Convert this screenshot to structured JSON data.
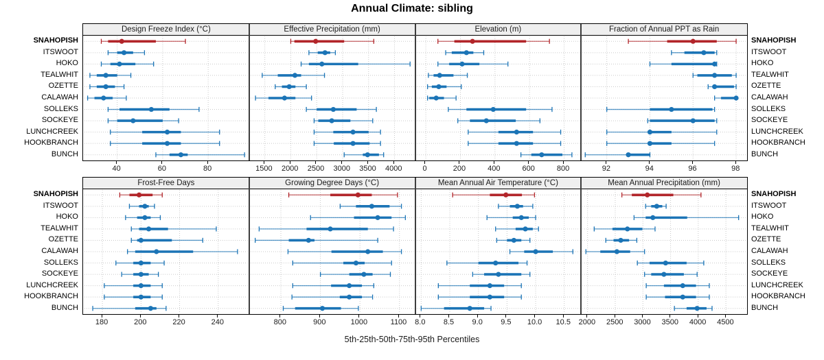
{
  "title": "Annual Climate: sibling",
  "caption": "5th-25th-50th-75th-95th Percentiles",
  "percentile_labels": [
    "5th",
    "25th",
    "50th",
    "75th",
    "95th"
  ],
  "sites": [
    "SNAHOPISH",
    "ITSWOOT",
    "HOKO",
    "TEALWHIT",
    "OZETTE",
    "CALAWAH",
    "SOLLEKS",
    "SOCKEYE",
    "LUNCHCREEK",
    "HOOKBRANCH",
    "BUNCH"
  ],
  "highlight_site": "SNAHOPISH",
  "colors": {
    "highlight": "#b2252a",
    "normal": "#1b74b6",
    "strip_bg": "#efefef",
    "grid": "#c9c9c9",
    "separator": "#3d3d3d",
    "panel_border": "#000000",
    "text": "#1a1a1a"
  },
  "chart_data": [
    {
      "type": "dot-whisker",
      "title": "Design Freeze Index (°C)",
      "xlim": [
        25,
        98
      ],
      "ticks": [
        40,
        60,
        80
      ],
      "tick_labels": [
        "40",
        "60",
        "80"
      ],
      "values": [
        [
          33,
          36,
          42,
          57,
          70
        ],
        [
          36,
          40,
          43,
          47,
          52
        ],
        [
          33,
          37,
          41,
          48,
          56
        ],
        [
          28,
          31,
          35,
          40,
          46
        ],
        [
          28,
          31,
          35,
          39,
          43
        ],
        [
          27,
          30,
          34,
          38,
          44
        ],
        [
          36,
          41,
          55,
          63,
          76
        ],
        [
          36,
          40,
          47,
          60,
          67
        ],
        [
          37,
          51,
          62,
          68,
          85
        ],
        [
          37,
          51,
          62,
          68,
          85
        ],
        [
          57,
          63,
          68,
          71,
          96
        ]
      ]
    },
    {
      "type": "dot-whisker",
      "title": "Effective Precipitation (mm)",
      "xlim": [
        1200,
        4400
      ],
      "ticks": [
        1500,
        2000,
        2500,
        3000,
        3500,
        4000
      ],
      "tick_labels": [
        "1500",
        "2000",
        "2500",
        "3000",
        "3500",
        "4000"
      ],
      "values": [
        [
          2000,
          2070,
          2480,
          3030,
          3600
        ],
        [
          2350,
          2520,
          2660,
          2760,
          2860
        ],
        [
          2200,
          2350,
          2600,
          3300,
          4300
        ],
        [
          1450,
          1750,
          2080,
          2200,
          2650
        ],
        [
          1700,
          1830,
          1970,
          2090,
          2300
        ],
        [
          1320,
          1570,
          1880,
          2090,
          2400
        ],
        [
          2300,
          2500,
          2820,
          3270,
          3650
        ],
        [
          2450,
          2530,
          2790,
          3150,
          3580
        ],
        [
          2450,
          2820,
          3200,
          3500,
          3730
        ],
        [
          2450,
          2830,
          3200,
          3520,
          3730
        ],
        [
          3030,
          3390,
          3480,
          3700,
          3790
        ]
      ]
    },
    {
      "type": "dot-whisker",
      "title": "Elevation (m)",
      "xlim": [
        -60,
        900
      ],
      "ticks": [
        0,
        200,
        400,
        600,
        800
      ],
      "tick_labels": [
        "0",
        "200",
        "400",
        "600",
        "800"
      ],
      "values": [
        [
          70,
          165,
          270,
          580,
          715
        ],
        [
          115,
          150,
          235,
          275,
          335
        ],
        [
          70,
          135,
          210,
          310,
          475
        ],
        [
          15,
          45,
          80,
          160,
          240
        ],
        [
          10,
          35,
          75,
          120,
          205
        ],
        [
          10,
          20,
          60,
          105,
          175
        ],
        [
          130,
          235,
          390,
          580,
          730
        ],
        [
          185,
          255,
          350,
          520,
          660
        ],
        [
          245,
          420,
          525,
          620,
          780
        ],
        [
          245,
          420,
          525,
          620,
          780
        ],
        [
          550,
          610,
          670,
          790,
          845
        ]
      ]
    },
    {
      "type": "dot-whisker",
      "title": "Fraction of Annual PPT as Rain",
      "xlim": [
        90.8,
        98.5
      ],
      "ticks": [
        92,
        94,
        96,
        98
      ],
      "tick_labels": [
        "92",
        "94",
        "96",
        "98"
      ],
      "values": [
        [
          93,
          94.8,
          96,
          97.1,
          98
        ],
        [
          95,
          95.6,
          96.5,
          97,
          97.1
        ],
        [
          94,
          95,
          97,
          97,
          97.1
        ],
        [
          96,
          96.2,
          97,
          97.8,
          98
        ],
        [
          96.7,
          97,
          97,
          97.9,
          98
        ],
        [
          97,
          97.3,
          98,
          98,
          98
        ],
        [
          92,
          94,
          95,
          96.9,
          97
        ],
        [
          93.9,
          94,
          96,
          97,
          97.1
        ],
        [
          92,
          93.9,
          94,
          95,
          97.1
        ],
        [
          92,
          94,
          94,
          95,
          97
        ],
        [
          91,
          93,
          93,
          94,
          94
        ]
      ]
    },
    {
      "type": "dot-whisker",
      "title": "Frost-Free Days",
      "xlim": [
        170,
        256
      ],
      "ticks": [
        180,
        200,
        220,
        240
      ],
      "tick_labels": [
        "180",
        "200",
        "220",
        "240"
      ],
      "values": [
        [
          189,
          194,
          199,
          206,
          211
        ],
        [
          194,
          199,
          202,
          204,
          207
        ],
        [
          192,
          198,
          202,
          205,
          210
        ],
        [
          195,
          199,
          204,
          214,
          239
        ],
        [
          195,
          198,
          200,
          216,
          232
        ],
        [
          193,
          197,
          208,
          227,
          250
        ],
        [
          187,
          196,
          200,
          205,
          212
        ],
        [
          190,
          196,
          200,
          204,
          209
        ],
        [
          181,
          196,
          200,
          205,
          211
        ],
        [
          181,
          196,
          200,
          205,
          211
        ],
        [
          175,
          197,
          205,
          208,
          213
        ]
      ]
    },
    {
      "type": "dot-whisker",
      "title": "Growing Degree Days (°C)",
      "xlim": [
        720,
        1140
      ],
      "ticks": [
        800,
        900,
        1000,
        1100
      ],
      "tick_labels": [
        "800",
        "900",
        "1000",
        "1100"
      ],
      "values": [
        [
          820,
          925,
          995,
          1030,
          1095
        ],
        [
          950,
          990,
          1030,
          1075,
          1105
        ],
        [
          875,
          985,
          1045,
          1080,
          1115
        ],
        [
          745,
          865,
          925,
          1020,
          1085
        ],
        [
          735,
          820,
          870,
          885,
          1045
        ],
        [
          818,
          928,
          1020,
          1058,
          1105
        ],
        [
          830,
          958,
          990,
          1012,
          1080
        ],
        [
          900,
          973,
          1010,
          1032,
          1077
        ],
        [
          830,
          927,
          973,
          1005,
          1035
        ],
        [
          828,
          949,
          973,
          1005,
          1032
        ],
        [
          806,
          836,
          905,
          952,
          996
        ]
      ]
    },
    {
      "type": "dot-whisker",
      "title": "Mean Annual Air Temperature (°C)",
      "xlim": [
        7.9,
        10.8
      ],
      "ticks": [
        8.0,
        8.5,
        9.0,
        9.5,
        10.0,
        10.5
      ],
      "tick_labels": [
        "8.0",
        "8.5",
        "9.0",
        "9.5",
        "10.0",
        "10.5"
      ],
      "values": [
        [
          8.55,
          9.2,
          9.48,
          9.76,
          9.98
        ],
        [
          9.35,
          9.55,
          9.68,
          9.78,
          9.95
        ],
        [
          9.15,
          9.6,
          9.75,
          9.88,
          10.0
        ],
        [
          9.3,
          9.65,
          9.82,
          9.95,
          10.05
        ],
        [
          9.32,
          9.5,
          9.62,
          9.75,
          9.9
        ],
        [
          9.55,
          9.8,
          10.0,
          10.3,
          10.65
        ],
        [
          8.45,
          9.0,
          9.3,
          9.7,
          9.85
        ],
        [
          8.9,
          9.1,
          9.35,
          9.75,
          9.9
        ],
        [
          8.3,
          8.85,
          9.2,
          9.45,
          9.75
        ],
        [
          8.3,
          8.85,
          9.2,
          9.45,
          9.75
        ],
        [
          8.0,
          8.4,
          8.85,
          9.1,
          9.22
        ]
      ]
    },
    {
      "type": "dot-whisker",
      "title": "Mean Annual Precipitation (mm)",
      "xlim": [
        1880,
        4880
      ],
      "ticks": [
        2000,
        2500,
        3000,
        3500,
        4000,
        4500
      ],
      "tick_labels": [
        "2000",
        "2500",
        "3000",
        "3500",
        "4000",
        "4500"
      ],
      "values": [
        [
          2620,
          2800,
          3080,
          3550,
          4050
        ],
        [
          3050,
          3150,
          3250,
          3350,
          3420
        ],
        [
          2840,
          3050,
          3180,
          3800,
          4730
        ],
        [
          2120,
          2450,
          2720,
          2990,
          3220
        ],
        [
          2330,
          2470,
          2600,
          2750,
          2890
        ],
        [
          1970,
          2230,
          2530,
          2770,
          3030
        ],
        [
          2900,
          3120,
          3410,
          3790,
          4100
        ],
        [
          3030,
          3150,
          3380,
          3740,
          3980
        ],
        [
          3060,
          3380,
          3720,
          3960,
          4200
        ],
        [
          3060,
          3400,
          3720,
          3960,
          4200
        ],
        [
          3570,
          3790,
          3980,
          4150,
          4250
        ]
      ]
    }
  ]
}
